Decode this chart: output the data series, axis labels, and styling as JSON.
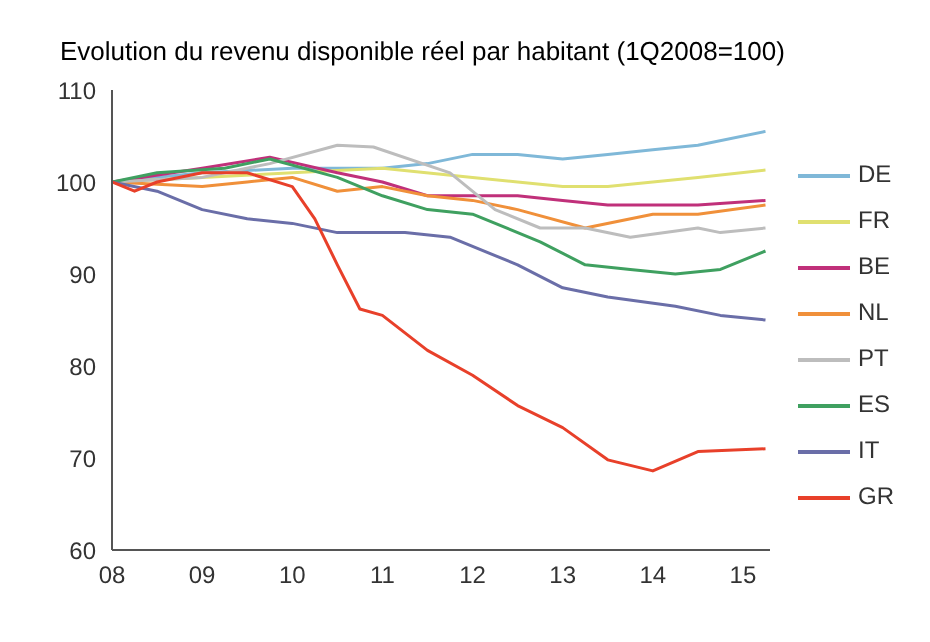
{
  "chart_data": {
    "type": "line",
    "title": "Evolution du revenu disponible réel par habitant (1Q2008=100)",
    "xlim": [
      2008,
      2015.3
    ],
    "xticks": [
      {
        "value": 2008,
        "label": "08"
      },
      {
        "value": 2009,
        "label": "09"
      },
      {
        "value": 2010,
        "label": "10"
      },
      {
        "value": 2011,
        "label": "11"
      },
      {
        "value": 2012,
        "label": "12"
      },
      {
        "value": 2013,
        "label": "13"
      },
      {
        "value": 2014,
        "label": "14"
      },
      {
        "value": 2015,
        "label": "15"
      }
    ],
    "ylim": [
      60,
      110
    ],
    "yticks": [
      60,
      70,
      80,
      90,
      100,
      110
    ],
    "grid": false,
    "legend": "right",
    "marker": "none",
    "line_style": "solid",
    "series": [
      {
        "name": "DE",
        "color": "#7fb8d8",
        "x": [
          2008,
          2009,
          2010,
          2011,
          2011.5,
          2012,
          2012.5,
          2013,
          2013.5,
          2014,
          2014.5,
          2015.25
        ],
        "values": [
          100,
          101,
          101.5,
          101.5,
          102,
          103,
          103,
          102.5,
          103,
          103.5,
          104,
          105.5
        ]
      },
      {
        "name": "FR",
        "color": "#e0e070",
        "x": [
          2008,
          2009,
          2010,
          2011,
          2012,
          2012.5,
          2013,
          2013.5,
          2014,
          2014.5,
          2015.25
        ],
        "values": [
          100,
          100.5,
          101,
          101.5,
          100.5,
          100,
          99.5,
          99.5,
          100,
          100.5,
          101.3
        ]
      },
      {
        "name": "BE",
        "color": "#c0307a",
        "x": [
          2008,
          2009,
          2009.75,
          2010.5,
          2011,
          2011.5,
          2012,
          2012.5,
          2013,
          2013.5,
          2014,
          2014.5,
          2015.25
        ],
        "values": [
          100,
          101.5,
          102.7,
          101,
          100,
          98.5,
          98.5,
          98.5,
          98,
          97.5,
          97.5,
          97.5,
          98
        ]
      },
      {
        "name": "NL",
        "color": "#f0903a",
        "x": [
          2008,
          2009,
          2009.5,
          2010,
          2010.5,
          2011,
          2011.5,
          2012,
          2012.5,
          2013.25,
          2014,
          2014.5,
          2015.25
        ],
        "values": [
          100,
          99.5,
          100,
          100.5,
          99,
          99.5,
          98.5,
          98,
          97,
          95,
          96.5,
          96.5,
          97.5
        ]
      },
      {
        "name": "PT",
        "color": "#bdbdbd",
        "x": [
          2008,
          2009,
          2009.75,
          2010.5,
          2010.9,
          2011.75,
          2012.25,
          2012.75,
          2013.25,
          2013.75,
          2014.5,
          2014.75,
          2015.25
        ],
        "values": [
          100,
          100.5,
          102,
          104,
          103.8,
          101,
          97,
          95,
          95,
          94,
          95,
          94.5,
          95
        ]
      },
      {
        "name": "ES",
        "color": "#3fa060",
        "x": [
          2008,
          2008.5,
          2009.25,
          2009.75,
          2010.5,
          2011,
          2011.5,
          2012,
          2012.75,
          2013.25,
          2013.75,
          2014.25,
          2014.75,
          2015.25
        ],
        "values": [
          100,
          101,
          101.5,
          102.5,
          100.5,
          98.5,
          97,
          96.5,
          93.5,
          91,
          90.5,
          90,
          90.5,
          92.5
        ]
      },
      {
        "name": "IT",
        "color": "#6a6ea8",
        "x": [
          2008,
          2008.5,
          2009,
          2009.5,
          2010,
          2010.5,
          2011.25,
          2011.75,
          2012.5,
          2013,
          2013.5,
          2014.25,
          2014.75,
          2015.25
        ],
        "values": [
          100,
          99,
          97,
          96,
          95.5,
          94.5,
          94.5,
          94,
          91,
          88.5,
          87.5,
          86.5,
          85.5,
          85
        ]
      },
      {
        "name": "GR",
        "color": "#e8402a",
        "x": [
          2008,
          2008.25,
          2008.5,
          2009,
          2009.5,
          2010,
          2010.25,
          2010.5,
          2010.75,
          2011,
          2011.5,
          2012,
          2012.5,
          2013,
          2013.5,
          2014,
          2014.5,
          2015.25
        ],
        "values": [
          100,
          99,
          100,
          101,
          101,
          99.5,
          96,
          91,
          86.2,
          85.5,
          81.7,
          79,
          75.7,
          73.3,
          69.8,
          68.6,
          70.7,
          71
        ]
      }
    ]
  }
}
